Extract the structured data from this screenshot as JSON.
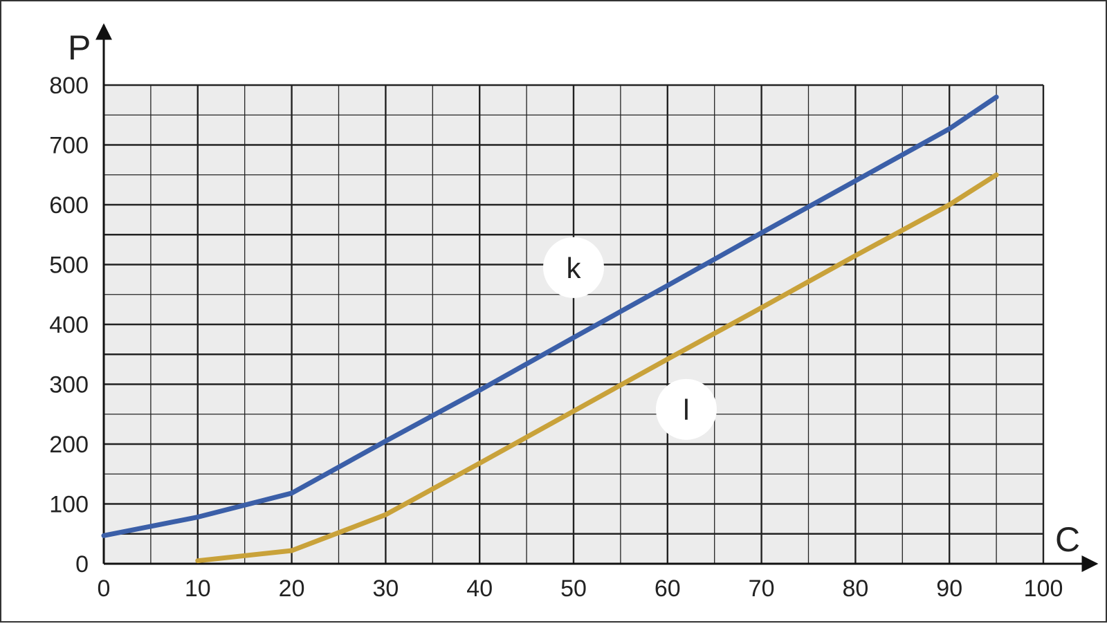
{
  "chart_data": {
    "type": "line",
    "title": "",
    "xlabel": "C",
    "ylabel": "P",
    "xlim": [
      0,
      100
    ],
    "ylim": [
      0,
      800
    ],
    "x_ticks": [
      "0",
      "10",
      "20",
      "30",
      "40",
      "50",
      "60",
      "70",
      "80",
      "90",
      "100"
    ],
    "y_ticks": [
      "0",
      "100",
      "200",
      "300",
      "400",
      "500",
      "600",
      "700",
      "800"
    ],
    "x_tick_values": [
      0,
      10,
      20,
      30,
      40,
      50,
      60,
      70,
      80,
      90,
      100
    ],
    "y_tick_values": [
      0,
      100,
      200,
      300,
      400,
      500,
      600,
      700,
      800
    ],
    "minor_x_step": 5,
    "minor_y_step": 50,
    "emphasized_y_lines": [
      50,
      350,
      550
    ],
    "grid": true,
    "series": [
      {
        "name": "k",
        "color": "#3b5fa8",
        "points": [
          [
            0,
            47
          ],
          [
            10,
            78
          ],
          [
            20,
            118
          ],
          [
            30,
            205
          ],
          [
            40,
            290
          ],
          [
            50,
            378
          ],
          [
            60,
            465
          ],
          [
            70,
            553
          ],
          [
            80,
            640
          ],
          [
            90,
            727
          ],
          [
            95,
            780
          ]
        ],
        "label_at": [
          50,
          495
        ]
      },
      {
        "name": "l",
        "color": "#c9a23a",
        "points": [
          [
            10,
            5
          ],
          [
            20,
            22
          ],
          [
            30,
            82
          ],
          [
            40,
            168
          ],
          [
            50,
            255
          ],
          [
            60,
            342
          ],
          [
            70,
            428
          ],
          [
            80,
            515
          ],
          [
            90,
            600
          ],
          [
            95,
            650
          ]
        ],
        "label_at": [
          62,
          258
        ]
      }
    ],
    "colors": {
      "plot_background": "#ececec",
      "grid_line": "#222222",
      "axis": "#111111"
    }
  }
}
